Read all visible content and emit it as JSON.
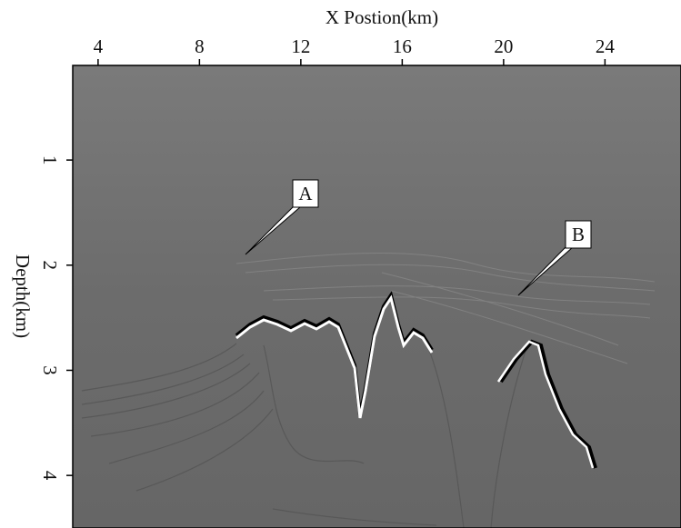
{
  "chart_data": {
    "type": "image",
    "xlabel": "X Postion(km)",
    "ylabel": "Depth(km)",
    "xlim": [
      3,
      27
    ],
    "xticks": [
      4,
      8,
      12,
      16,
      20,
      24
    ],
    "ylim": [
      0.1,
      4.5
    ],
    "yticks": [
      1,
      2,
      3,
      4
    ],
    "annotations": [
      "A",
      "B"
    ]
  }
}
